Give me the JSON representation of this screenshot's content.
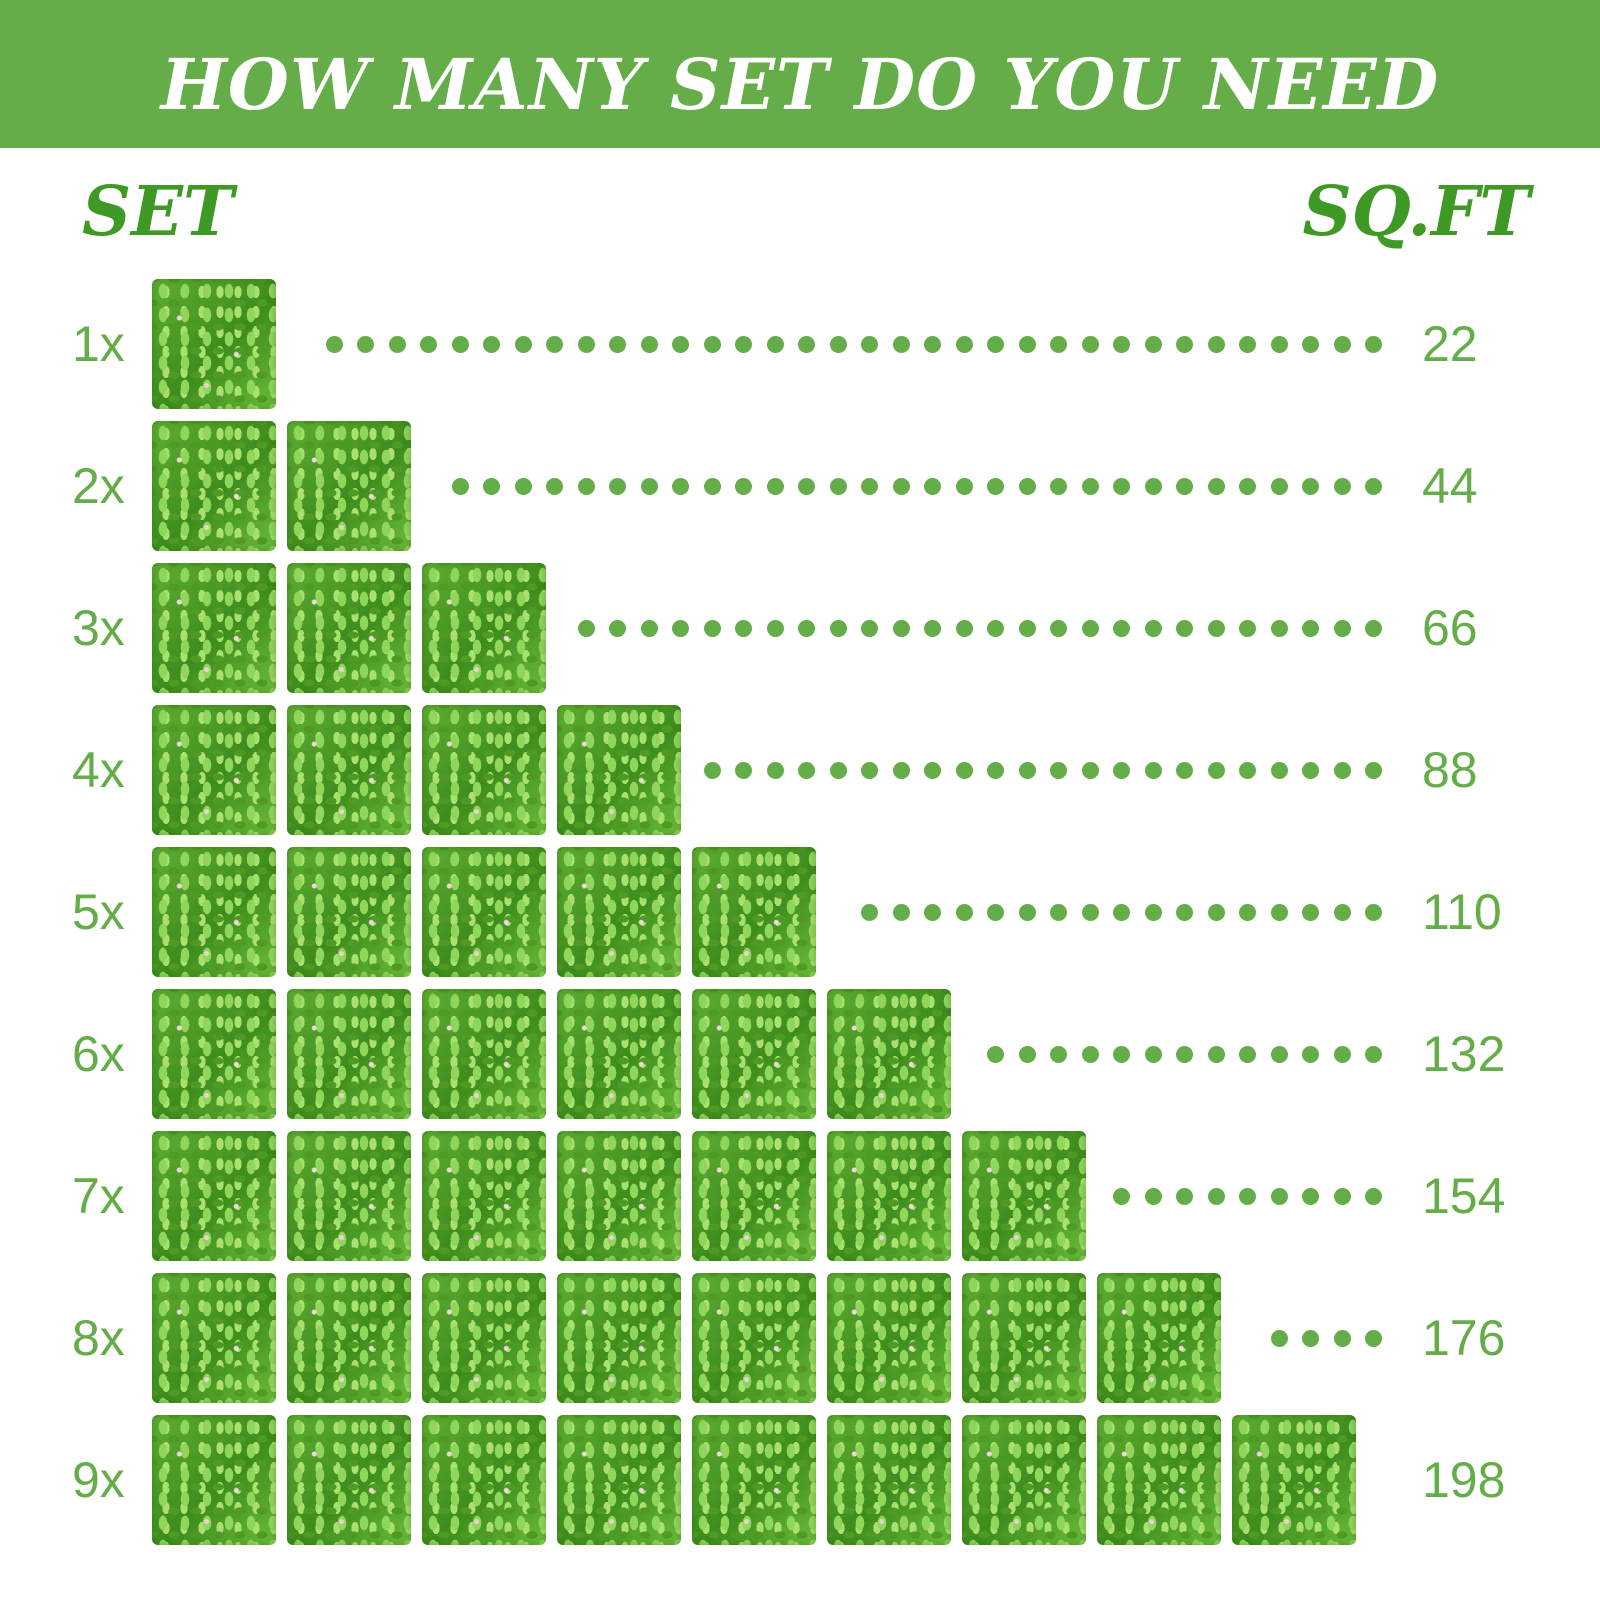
{
  "title": "HOW MANY SET DO YOU NEED",
  "headers": {
    "left": "SET",
    "right": "SQ.FT"
  },
  "colors": {
    "accent": "#64ad48",
    "heading": "#3f9a25",
    "dots": "#64ad48"
  },
  "rows": [
    {
      "label": "1x",
      "sets": 1,
      "sqft": "22"
    },
    {
      "label": "2x",
      "sets": 2,
      "sqft": "44"
    },
    {
      "label": "3x",
      "sets": 3,
      "sqft": "66"
    },
    {
      "label": "4x",
      "sets": 4,
      "sqft": "88"
    },
    {
      "label": "5x",
      "sets": 5,
      "sqft": "110"
    },
    {
      "label": "6x",
      "sets": 6,
      "sqft": "132"
    },
    {
      "label": "7x",
      "sets": 7,
      "sqft": "154"
    },
    {
      "label": "8x",
      "sets": 8,
      "sqft": "176"
    },
    {
      "label": "9x",
      "sets": 9,
      "sqft": "198"
    }
  ]
}
